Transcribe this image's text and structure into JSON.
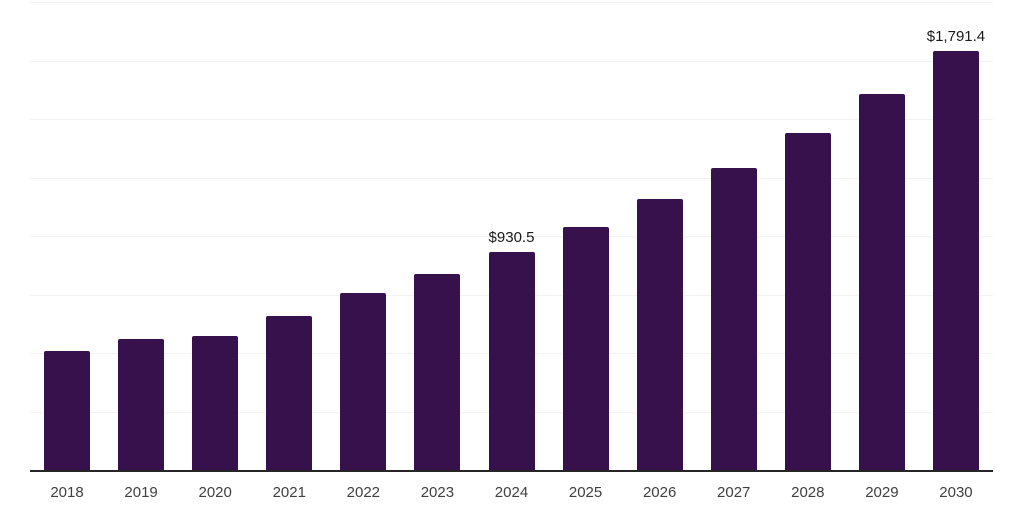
{
  "chart_data": {
    "type": "bar",
    "title": "",
    "xlabel": "",
    "ylabel": "",
    "categories": [
      "2018",
      "2019",
      "2020",
      "2021",
      "2022",
      "2023",
      "2024",
      "2025",
      "2026",
      "2027",
      "2028",
      "2029",
      "2030"
    ],
    "values": [
      508,
      560,
      573,
      658,
      756,
      838,
      930.5,
      1038,
      1158,
      1290,
      1440,
      1607,
      1791.4
    ],
    "value_labels": {
      "2024": "$930.5",
      "2030": "$1,791.4"
    },
    "ylim": [
      0,
      2000
    ],
    "gridline_step": 250,
    "grid": "horizontal",
    "legend": "none",
    "colors": {
      "bar": "#36114C",
      "axis_line": "#262626",
      "gridline": "#F2F2F2",
      "tick_label": "#404040",
      "value_label": "#1A1A1A",
      "background": "#FFFFFF"
    }
  }
}
